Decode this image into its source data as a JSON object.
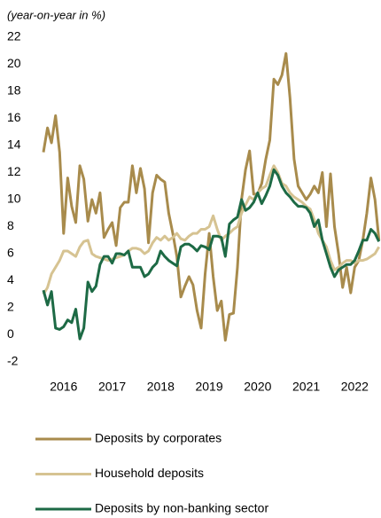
{
  "chart_data": {
    "type": "line",
    "subtitle": "(year-on-year in %)",
    "categories": [
      null,
      null,
      null,
      null,
      null,
      "2016",
      null,
      null,
      null,
      null,
      null,
      null,
      null,
      null,
      null,
      null,
      null,
      "2017",
      null,
      null,
      null,
      null,
      null,
      null,
      null,
      null,
      null,
      null,
      null,
      "2018",
      null,
      null,
      null,
      null,
      null,
      null,
      null,
      null,
      null,
      null,
      null,
      "2019",
      null,
      null,
      null,
      null,
      null,
      null,
      null,
      null,
      null,
      null,
      null,
      "2020",
      null,
      null,
      null,
      null,
      null,
      null,
      null,
      null,
      null,
      null,
      null,
      "2021",
      null,
      null,
      null,
      null,
      null,
      null,
      null,
      null,
      null,
      null,
      null,
      "2022",
      null,
      null,
      null,
      null,
      null,
      null
    ],
    "series": [
      {
        "name": "Deposits by corporates",
        "color": "#a88b4c",
        "values": [
          13.5,
          15.3,
          14.2,
          16.2,
          13.5,
          7.5,
          11.6,
          9.5,
          8.3,
          12.5,
          11.5,
          8.4,
          10,
          9,
          10.5,
          7.2,
          7.8,
          8.3,
          6.6,
          9.4,
          9.8,
          9.8,
          12.5,
          10.5,
          12.3,
          10.8,
          6.8,
          10.5,
          11.8,
          11.5,
          11.3,
          9,
          7.5,
          5.8,
          2.8,
          3.6,
          4.3,
          3.7,
          1.8,
          0.5,
          4.5,
          7.5,
          4.3,
          1.8,
          2.5,
          -0.4,
          1.5,
          1.6,
          5,
          10,
          12.2,
          13.6,
          10.4,
          10.4,
          11.2,
          13,
          14.4,
          18.9,
          18.5,
          19.2,
          20.8,
          17.5,
          13,
          11,
          10.5,
          10,
          10.4,
          11,
          10.5,
          12,
          8,
          11.9,
          8,
          6,
          3.5,
          5,
          3.1,
          5,
          5.5,
          7,
          9,
          11.6,
          10,
          7
        ]
      },
      {
        "name": "Household deposits",
        "color": "#d6c392",
        "values": [
          3,
          3.5,
          4.5,
          5,
          5.5,
          6.2,
          6.2,
          6,
          5.8,
          6.5,
          6.9,
          7,
          6,
          5.8,
          5.7,
          5.6,
          5.5,
          5.6,
          5.7,
          5.8,
          5.9,
          6.2,
          6.4,
          6.4,
          6.3,
          6,
          6.2,
          6.8,
          7.2,
          7,
          7.3,
          7,
          7.2,
          7.5,
          7.1,
          7,
          7.3,
          7.5,
          7.5,
          7.8,
          7.8,
          8,
          8.8,
          7.8,
          7,
          7.3,
          7.5,
          7.8,
          8,
          9,
          9.6,
          10.2,
          10,
          10.5,
          10.8,
          11,
          11.8,
          12.5,
          12,
          11.2,
          11,
          10.5,
          10.2,
          10,
          9.8,
          9.5,
          9.3,
          8.5,
          7.5,
          7,
          6.5,
          5.5,
          4.8,
          5,
          5.3,
          5.5,
          5.5,
          5.3,
          5.5,
          5.5,
          5.6,
          5.8,
          6,
          6.5
        ]
      },
      {
        "name": "Deposits by non-banking sector",
        "color": "#1d6a45",
        "values": [
          3.3,
          2.2,
          3.2,
          0.5,
          0.4,
          0.6,
          1.1,
          0.9,
          1.9,
          -0.3,
          0.5,
          3.9,
          3.2,
          3.6,
          5.2,
          5.8,
          5.8,
          5.3,
          6,
          6,
          5.9,
          6.2,
          5,
          5,
          5,
          4.3,
          4.5,
          5,
          5.3,
          6.2,
          5.8,
          5.5,
          5.3,
          5.1,
          6.5,
          6.7,
          6.7,
          6.5,
          6.2,
          6.6,
          6.5,
          6.3,
          7.3,
          7.3,
          7.2,
          5.8,
          8.2,
          8.5,
          8.7,
          10,
          9.2,
          9.4,
          9.8,
          10.5,
          9.7,
          10.3,
          11,
          12.2,
          11.8,
          11,
          10.5,
          10.2,
          9.8,
          9.5,
          9.5,
          9.4,
          9,
          8,
          8.5,
          7,
          6,
          5,
          4.3,
          4.8,
          5,
          5.2,
          5.2,
          5.5,
          6.2,
          7,
          7,
          7.8,
          7.5,
          6.9
        ]
      }
    ],
    "ylim": [
      -2,
      22
    ],
    "yticks": [
      -2,
      0,
      2,
      4,
      6,
      8,
      10,
      12,
      14,
      16,
      18,
      20,
      22
    ]
  }
}
